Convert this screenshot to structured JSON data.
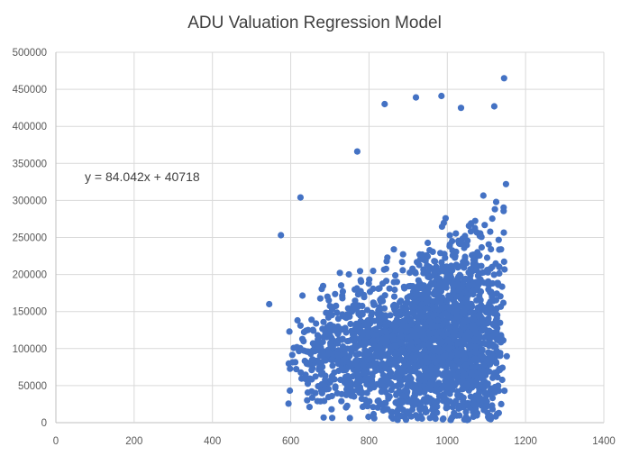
{
  "chart_data": {
    "type": "scatter",
    "title": "ADU Valuation Regression Model",
    "xlabel": "",
    "ylabel": "",
    "xlim": [
      0,
      1400
    ],
    "ylim": [
      0,
      500000
    ],
    "x_ticks": [
      0,
      200,
      400,
      600,
      800,
      1000,
      1200,
      1400
    ],
    "y_ticks": [
      0,
      50000,
      100000,
      150000,
      200000,
      250000,
      300000,
      350000,
      400000,
      450000,
      500000
    ],
    "grid": true,
    "legend": "none",
    "point_color": "#4472c4",
    "trendline_equation": "y = 84.042x + 40718",
    "trendline": {
      "slope": 84.042,
      "intercept": 40718,
      "shown": false
    },
    "point_count": 2200,
    "seed": 20231,
    "x_range": [
      545,
      1155
    ],
    "sample_points": [
      {
        "x": 1145,
        "y": 465000
      },
      {
        "x": 985,
        "y": 441000
      },
      {
        "x": 920,
        "y": 439000
      },
      {
        "x": 840,
        "y": 430000
      },
      {
        "x": 1035,
        "y": 425000
      },
      {
        "x": 1120,
        "y": 427000
      },
      {
        "x": 770,
        "y": 366000
      },
      {
        "x": 625,
        "y": 304000
      },
      {
        "x": 575,
        "y": 253000
      },
      {
        "x": 545,
        "y": 160000
      },
      {
        "x": 1150,
        "y": 322000
      }
    ]
  }
}
